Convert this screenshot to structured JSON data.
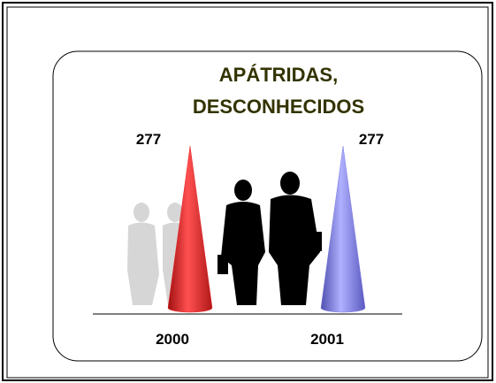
{
  "chart_data": {
    "type": "cone-bar",
    "title": [
      "APÁTRIDAS,",
      "DESCONHECIDOS"
    ],
    "categories": [
      "2000",
      "2001"
    ],
    "values": [
      277,
      277
    ],
    "colors": [
      "#e8282c",
      "#7f7fe0"
    ]
  }
}
